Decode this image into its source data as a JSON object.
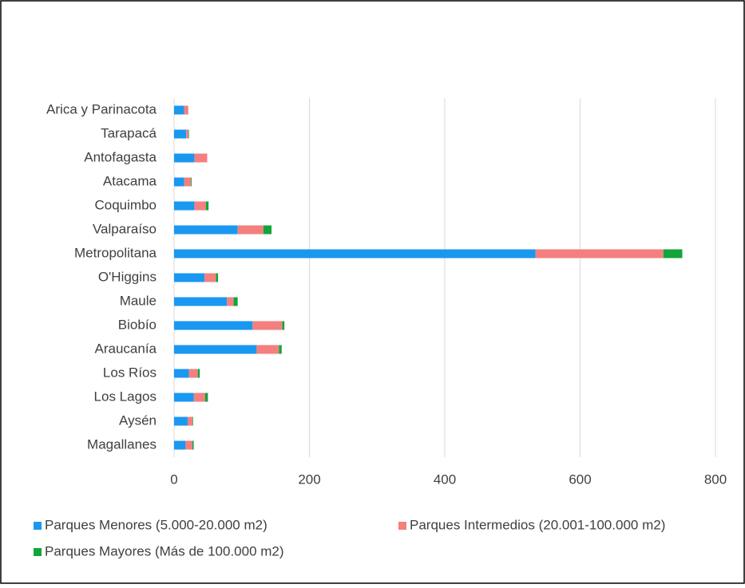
{
  "chart_data": {
    "type": "stacked-hbar",
    "categories": [
      "Arica y Parinacota",
      "Tarapacá",
      "Antofagasta",
      "Atacama",
      "Coquimbo",
      "Valparaíso",
      "Metropolitana",
      "O'Higgins",
      "Maule",
      "Biobío",
      "Araucanía",
      "Los Ríos",
      "Los Lagos",
      "Aysén",
      "Magallanes"
    ],
    "series": [
      {
        "name": "Parques Menores (5.000-20.000 m2)",
        "color": "#1a98f0",
        "values": [
          15,
          18,
          30,
          15,
          30,
          94,
          534,
          45,
          78,
          116,
          122,
          22,
          29,
          20,
          17
        ]
      },
      {
        "name": "Parques Intermedios (20.001-100.000 m2)",
        "color": "#f47f7f",
        "values": [
          6,
          3,
          19,
          10,
          17,
          38,
          189,
          17,
          10,
          44,
          33,
          13,
          17,
          7,
          10
        ]
      },
      {
        "name": "Parques Mayores (Más de 100.000 m2)",
        "color": "#12a53a",
        "values": [
          0,
          1,
          0,
          1,
          4,
          12,
          28,
          3,
          6,
          3,
          4,
          3,
          4,
          1,
          2
        ]
      }
    ],
    "xlim": [
      0,
      800
    ],
    "xticks": [
      0,
      200,
      400,
      600,
      800
    ],
    "grid": true
  }
}
